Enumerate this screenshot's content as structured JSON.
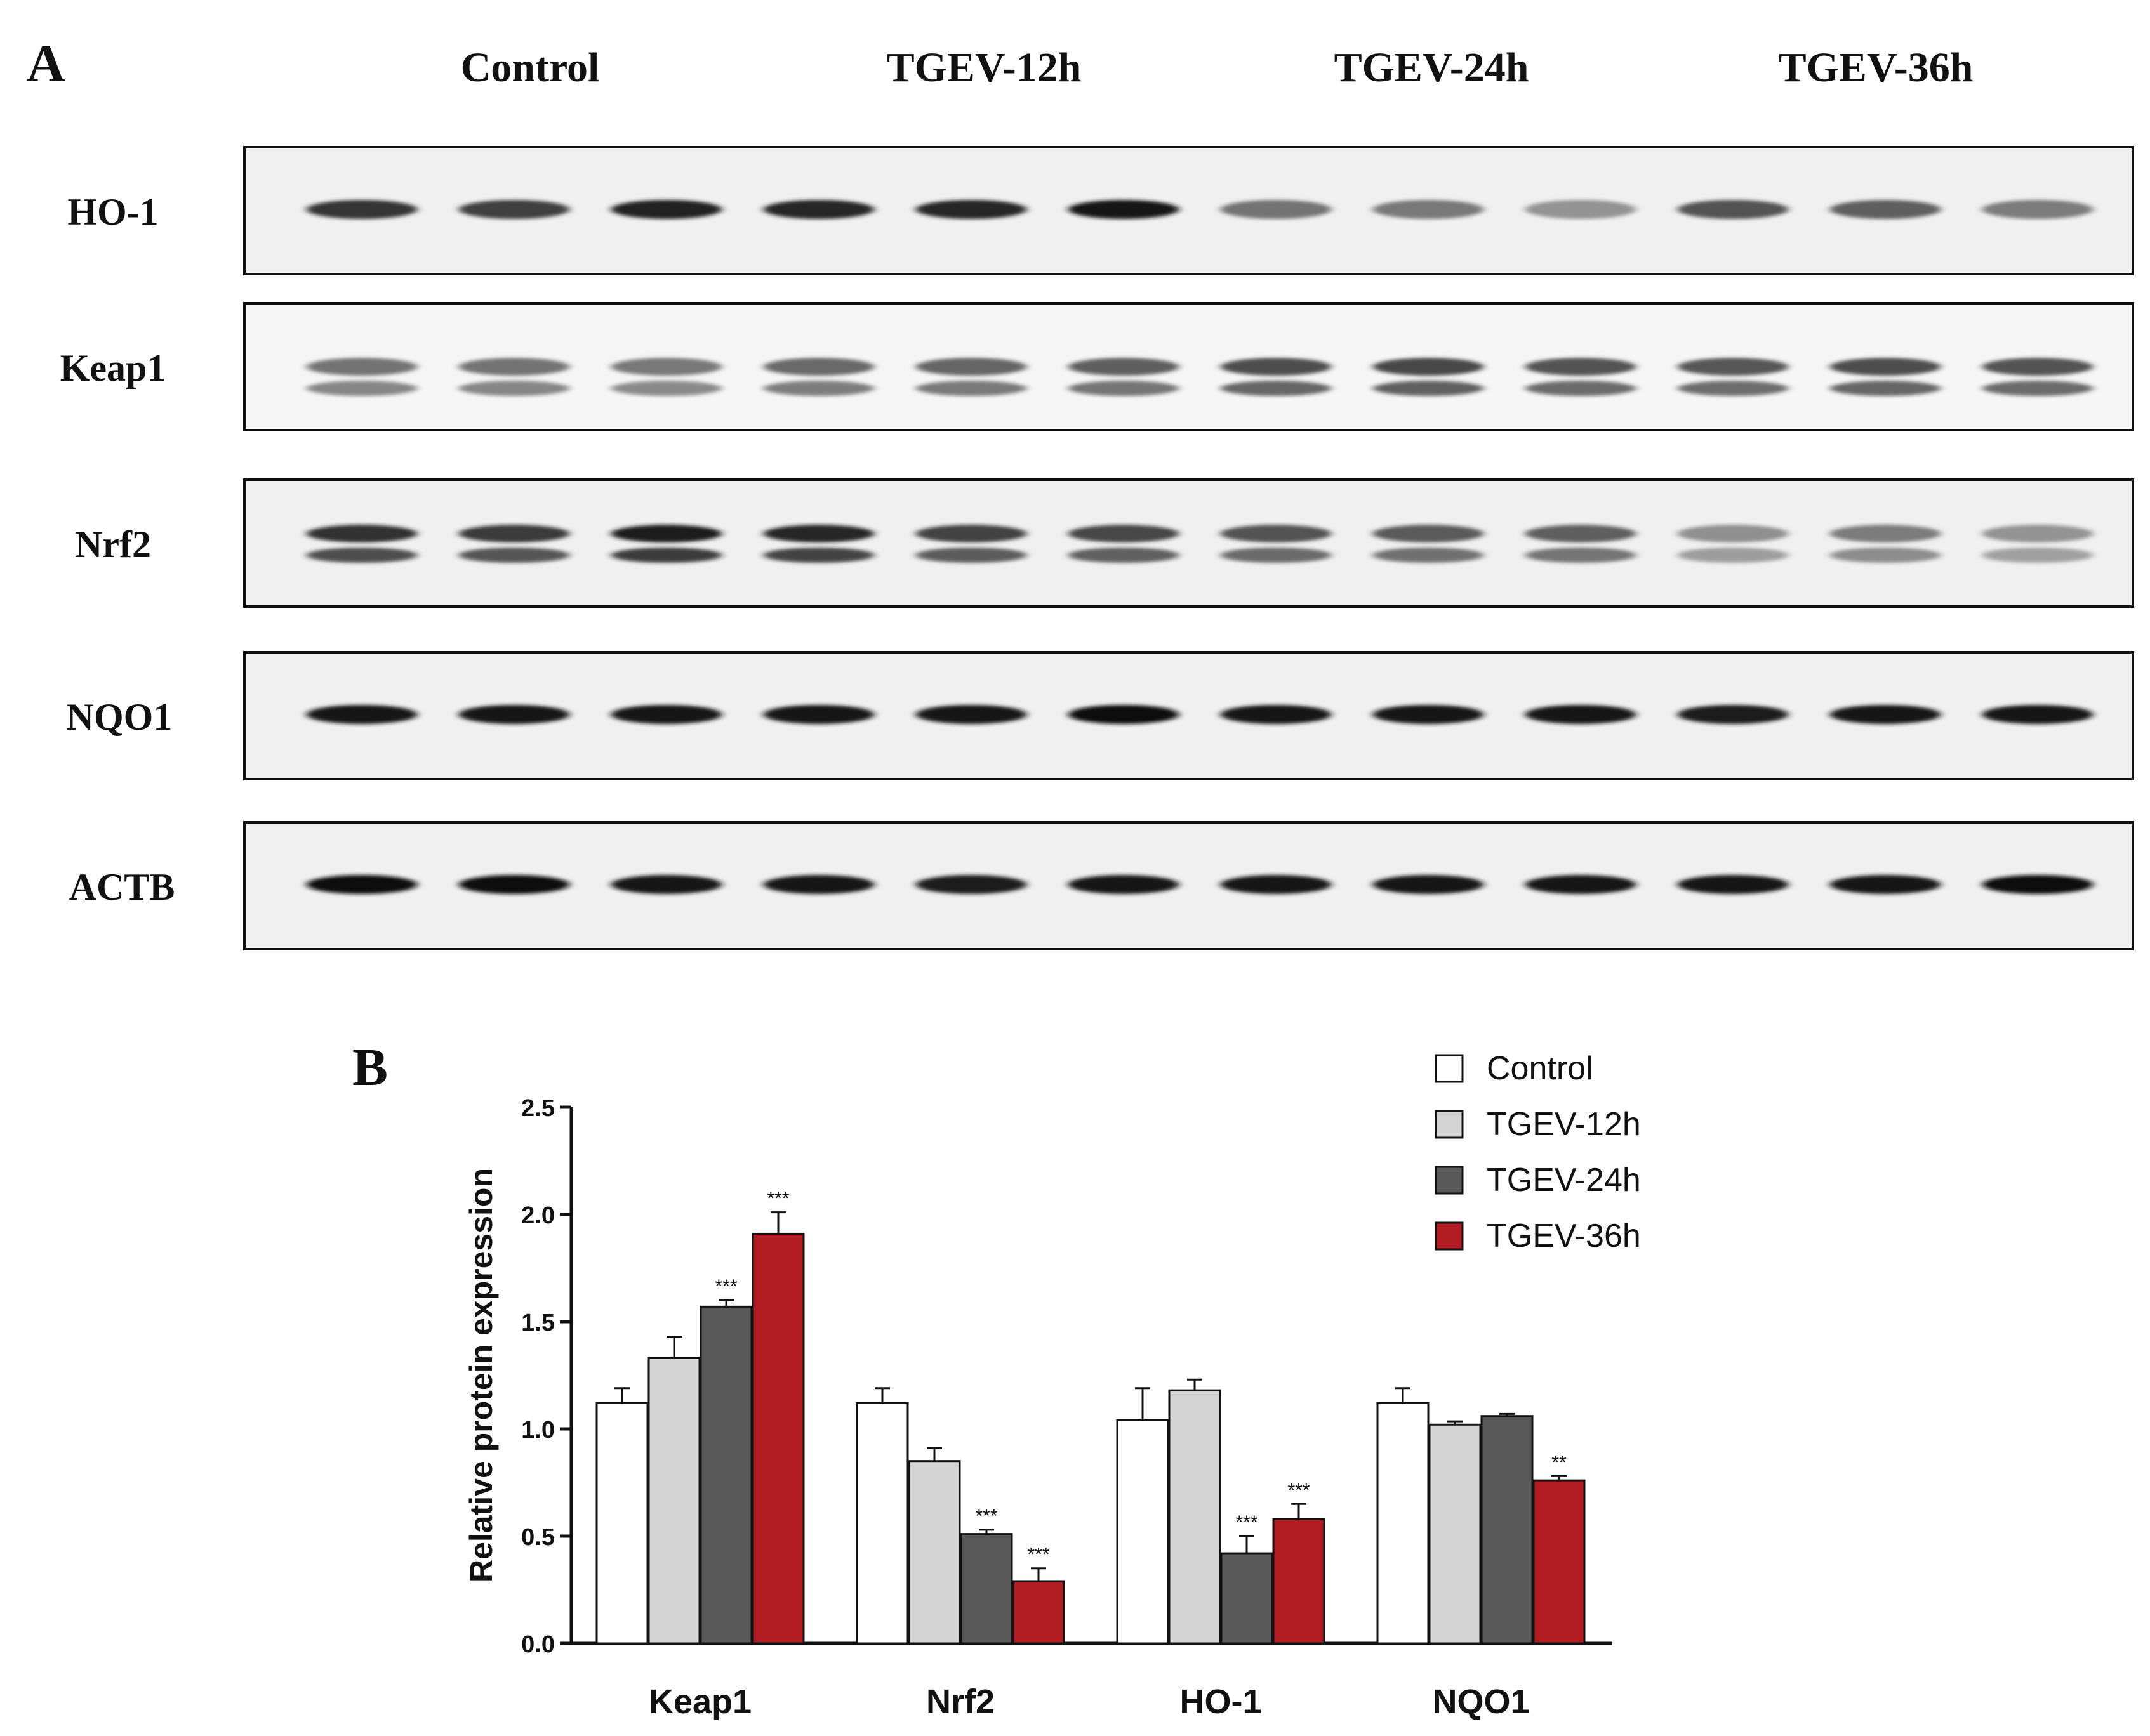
{
  "panel_a": {
    "label": "A",
    "groups": [
      "Control",
      "TGEV-12h",
      "TGEV-24h",
      "TGEV-36h"
    ],
    "blots": [
      {
        "name": "HO-1",
        "intensity": [
          0.78,
          0.72,
          0.88,
          0.85,
          0.84,
          0.92,
          0.45,
          0.42,
          0.28,
          0.62,
          0.55,
          0.4
        ]
      },
      {
        "name": "Keap1",
        "intensity": [
          0.45,
          0.45,
          0.42,
          0.5,
          0.52,
          0.55,
          0.65,
          0.68,
          0.62,
          0.6,
          0.65,
          0.62
        ]
      },
      {
        "name": "Nrf2",
        "intensity": [
          0.8,
          0.75,
          0.9,
          0.85,
          0.7,
          0.68,
          0.62,
          0.58,
          0.55,
          0.3,
          0.4,
          0.28
        ]
      },
      {
        "name": "NQO1",
        "intensity": [
          0.95,
          0.95,
          0.95,
          0.95,
          0.95,
          0.98,
          0.95,
          0.95,
          0.95,
          0.9,
          0.92,
          0.95
        ]
      },
      {
        "name": "ACTB",
        "intensity": [
          0.98,
          0.98,
          0.95,
          0.95,
          0.9,
          0.95,
          0.95,
          0.95,
          0.92,
          0.95,
          0.95,
          0.98
        ]
      }
    ]
  },
  "chart_data": {
    "type": "bar",
    "panel_label": "B",
    "categories": [
      "Keap1",
      "Nrf2",
      "HO-1",
      "NQO1"
    ],
    "ylabel": "Relative protein expression",
    "ylim": [
      0,
      2.5
    ],
    "yticks": [
      "0.0",
      "0.5",
      "1.0",
      "1.5",
      "2.0",
      "2.5"
    ],
    "legend_position": "top-right",
    "series": [
      {
        "name": "Control",
        "color": "#ffffff",
        "values": [
          1.12,
          1.12,
          1.04,
          1.12
        ],
        "errors": [
          0.07,
          0.07,
          0.15,
          0.07
        ],
        "stars": [
          "",
          "",
          "",
          ""
        ]
      },
      {
        "name": "TGEV-12h",
        "color": "#d4d4d4",
        "values": [
          1.33,
          0.85,
          1.18,
          1.02
        ],
        "errors": [
          0.1,
          0.06,
          0.05,
          0.015
        ],
        "stars": [
          "",
          "",
          "",
          ""
        ]
      },
      {
        "name": "TGEV-24h",
        "color": "#595959",
        "values": [
          1.57,
          0.51,
          0.42,
          1.06
        ],
        "errors": [
          0.03,
          0.02,
          0.08,
          0.01
        ],
        "stars": [
          "***",
          "***",
          "***",
          ""
        ]
      },
      {
        "name": "TGEV-36h",
        "color": "#b01c22",
        "values": [
          1.91,
          0.29,
          0.58,
          0.76
        ],
        "errors": [
          0.1,
          0.06,
          0.07,
          0.02
        ],
        "stars": [
          "***",
          "***",
          "***",
          "**"
        ]
      }
    ]
  }
}
